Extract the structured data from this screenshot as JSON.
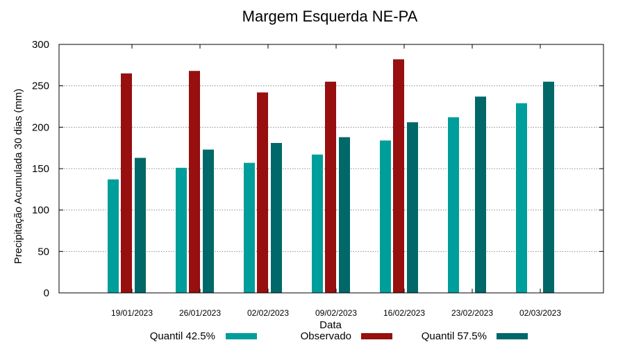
{
  "chart_data": {
    "type": "bar",
    "title": "Margem Esquerda NE-PA",
    "xlabel": "Data",
    "ylabel": "Precipitação Acumulada 30 dias (mm)",
    "ylim": [
      0,
      300
    ],
    "yticks": [
      0,
      50,
      100,
      150,
      200,
      250,
      300
    ],
    "grid": true,
    "legend_position": "bottom",
    "categories": [
      "19/01/2023",
      "26/01/2023",
      "02/02/2023",
      "09/02/2023",
      "16/02/2023",
      "23/02/2023",
      "02/03/2023"
    ],
    "series": [
      {
        "name": "Quantil 42.5%",
        "color": "#009e9a",
        "values": [
          137,
          151,
          157,
          167,
          184,
          212,
          229
        ]
      },
      {
        "name": "Observado",
        "color": "#970f0f",
        "values": [
          265,
          268,
          242,
          255,
          282,
          null,
          null
        ]
      },
      {
        "name": "Quantil 57.5%",
        "color": "#006868",
        "values": [
          163,
          173,
          181,
          188,
          206,
          237,
          255
        ]
      }
    ]
  }
}
